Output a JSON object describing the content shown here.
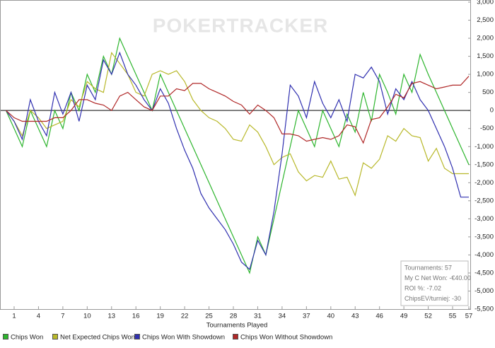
{
  "chart_data": {
    "type": "line",
    "watermark": "POKERTRACKER",
    "xlabel": "Tournaments Played",
    "x": [
      0,
      1,
      2,
      3,
      4,
      5,
      6,
      7,
      8,
      9,
      10,
      11,
      12,
      13,
      14,
      15,
      16,
      17,
      18,
      19,
      20,
      21,
      22,
      23,
      24,
      25,
      26,
      27,
      28,
      29,
      30,
      31,
      32,
      33,
      34,
      35,
      36,
      37,
      38,
      39,
      40,
      41,
      42,
      43,
      44,
      45,
      46,
      47,
      48,
      49,
      50,
      51,
      52,
      53,
      54,
      55,
      56,
      57
    ],
    "xlim": [
      0,
      57
    ],
    "xticks": [
      1,
      4,
      7,
      10,
      13,
      16,
      19,
      22,
      25,
      28,
      31,
      34,
      37,
      40,
      43,
      46,
      49,
      52,
      55,
      57
    ],
    "ylim": [
      -5500,
      3000
    ],
    "yticks": [
      {
        "value": 3000,
        "label": "3,000"
      },
      {
        "value": 2500,
        "label": "2,500"
      },
      {
        "value": 2000,
        "label": "2,000"
      },
      {
        "value": 1500,
        "label": "1,500"
      },
      {
        "value": 1000,
        "label": "1,000"
      },
      500,
      0,
      -500,
      {
        "value": -1000,
        "label": "-1,000"
      },
      {
        "value": -1500,
        "label": "-1,500"
      },
      {
        "value": -2000,
        "label": "-2,000"
      },
      {
        "value": -2500,
        "label": "-2,500"
      },
      {
        "value": -3000,
        "label": "-3,000"
      },
      {
        "value": -3500,
        "label": "-3,500"
      },
      {
        "value": -4000,
        "label": "-4,000"
      },
      {
        "value": -4500,
        "label": "-4,500"
      },
      {
        "value": -5000,
        "label": "-5,000"
      },
      {
        "value": -5500,
        "label": "-5,500"
      }
    ],
    "series": [
      {
        "name": "Chips Won",
        "color": "#2db52d",
        "values": [
          0,
          -500,
          -1000,
          0,
          -500,
          -1000,
          0,
          -500,
          500,
          0,
          1000,
          500,
          1500,
          1000,
          2000,
          1500,
          1000,
          500,
          0,
          1000,
          500,
          0,
          -500,
          -1000,
          -1500,
          -2000,
          -2500,
          -3000,
          -3500,
          -4000,
          -4500,
          -3500,
          -4000,
          -3000,
          -2000,
          -1000,
          0,
          -500,
          -1000,
          0,
          -500,
          -1000,
          -100,
          -600,
          500,
          -300,
          1000,
          500,
          -100,
          1000,
          500,
          1550,
          1000,
          500,
          0,
          -500,
          -1000,
          -1500
        ]
      },
      {
        "name": "Net Expected Chips Won",
        "color": "#b8b82a",
        "values": [
          0,
          -300,
          -700,
          0,
          -200,
          -500,
          -400,
          -300,
          300,
          100,
          800,
          600,
          500,
          1600,
          1300,
          1000,
          500,
          400,
          1000,
          1100,
          1000,
          1100,
          800,
          300,
          0,
          -200,
          -300,
          -500,
          -800,
          -850,
          -400,
          -600,
          -1000,
          -1500,
          -1300,
          -1200,
          -1700,
          -1950,
          -1800,
          -1850,
          -1400,
          -1900,
          -1850,
          -2350,
          -1450,
          -1600,
          -1350,
          -700,
          -850,
          -500,
          -700,
          -750,
          -1400,
          -1050,
          -1600,
          -1750,
          -1750,
          -1750
        ]
      },
      {
        "name": "Chips Won With Showdown",
        "color": "#3030b0",
        "values": [
          0,
          -300,
          -800,
          300,
          -300,
          -700,
          500,
          -100,
          500,
          -300,
          700,
          300,
          1400,
          1000,
          1600,
          1000,
          700,
          300,
          0,
          600,
          200,
          -500,
          -1100,
          -1600,
          -2300,
          -2700,
          -3000,
          -3300,
          -3700,
          -4200,
          -4400,
          -3600,
          -4000,
          -2800,
          -1200,
          700,
          400,
          -200,
          800,
          200,
          -200,
          300,
          -300,
          1000,
          900,
          1200,
          800,
          -100,
          600,
          300,
          800,
          300,
          0,
          -500,
          -1000,
          -1600,
          -2400,
          -2400
        ]
      },
      {
        "name": "Chips Won Without Showdown",
        "color": "#b02828",
        "values": [
          0,
          -200,
          -300,
          -300,
          -300,
          -300,
          -200,
          -200,
          0,
          300,
          300,
          200,
          150,
          0,
          400,
          500,
          300,
          100,
          0,
          400,
          400,
          600,
          550,
          750,
          750,
          600,
          500,
          400,
          250,
          150,
          -100,
          150,
          0,
          -200,
          -650,
          -650,
          -700,
          -850,
          -800,
          -750,
          -800,
          -700,
          -400,
          -450,
          -900,
          -250,
          -200,
          100,
          450,
          350,
          750,
          800,
          700,
          600,
          650,
          700,
          700,
          950
        ]
      }
    ],
    "stats": [
      "Tournaments: 57",
      "My C Net Won: -€40.00",
      "ROI %: -7.02",
      "ChipsEV/turniej: -30"
    ]
  }
}
